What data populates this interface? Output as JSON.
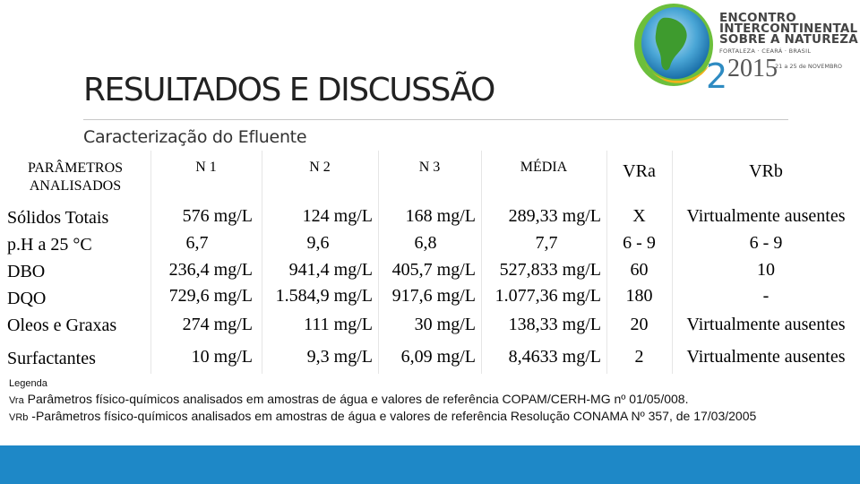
{
  "logo": {
    "line1": "ENCONTRO",
    "line2": "INTERCONTINENTAL",
    "line3": "SOBRE A NATUREZA",
    "place": "FORTALEZA · CEARÁ · BRASIL",
    "year": "2015",
    "dates": "21 a 25 de NOVEMBRO"
  },
  "title": "RESULTADOS E DISCUSSÃO",
  "subtitle": "Caracterização do Efluente",
  "table": {
    "headers": [
      "PARÂMETROS ANALISADOS",
      "N 1",
      "N 2",
      "N 3",
      "MÉDIA",
      "VRa",
      "VRb"
    ],
    "rows": [
      [
        "Sólidos Totais",
        "576 mg/L",
        "124 mg/L",
        "168 mg/L",
        "289,33 mg/L",
        "X",
        "Virtualmente ausentes"
      ],
      [
        "p.H a 25 °C",
        "6,7",
        "9,6",
        "6,8",
        "7,7",
        "6 - 9",
        "6 - 9"
      ],
      [
        "DBO",
        "236,4 mg/L",
        "941,4 mg/L",
        "405,7 mg/L",
        "527,833 mg/L",
        "60",
        "10"
      ],
      [
        "DQO",
        "729,6 mg/L",
        "1.584,9 mg/L",
        "917,6 mg/L",
        "1.077,36 mg/L",
        "180",
        "-"
      ],
      [
        "Oleos e Graxas",
        "274 mg/L",
        "111 mg/L",
        "30 mg/L",
        "138,33 mg/L",
        "20",
        "Virtualmente ausentes"
      ],
      [
        "Surfactantes",
        "10 mg/L",
        "9,3 mg/L",
        "6,09 mg/L",
        "8,4633 mg/L",
        "2",
        "Virtualmente ausentes"
      ]
    ]
  },
  "legend": {
    "heading": "Legenda",
    "vra_abbr": "Vra",
    "vra_text": "Parâmetros físico-químicos analisados em amostras de água e valores de referência COPAM/CERH-MG nº 01/05/008.",
    "vrb_abbr": "VRb",
    "vrb_text": "-Parâmetros físico-químicos analisados em amostras de água e valores de referência Resolução CONAMA Nº 357, de 17/03/2005"
  },
  "colors": {
    "footer": "#1e88c7"
  }
}
